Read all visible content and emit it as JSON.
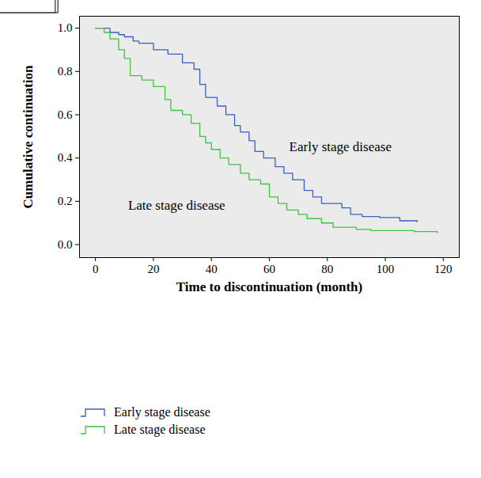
{
  "chart_data": {
    "type": "line",
    "xlabel": "Time to discontinuation (month)",
    "ylabel": "Cumulative continuation",
    "xlim": [
      -5.5,
      125.5
    ],
    "ylim": [
      -0.06,
      1.055
    ],
    "xticks": [
      0,
      20,
      40,
      60,
      80,
      100,
      120
    ],
    "yticks": [
      {
        "value": 0,
        "label": "0.0"
      },
      0.2,
      0.4,
      0.6,
      0.8,
      {
        "value": 1,
        "label": "1.0"
      }
    ],
    "grid": false,
    "legend": "bottom",
    "line_style": "step",
    "annotations": [
      {
        "text": "Early stage disease",
        "x": 84.5,
        "y": 0.45
      },
      {
        "text": "Late stage disease",
        "x": 28,
        "y": 0.18
      }
    ],
    "series": [
      {
        "name": "Early stage disease",
        "color": "#3b5fc0",
        "x": [
          0,
          5,
          8,
          10,
          13,
          15,
          20,
          25,
          30,
          34,
          36,
          38,
          42,
          45,
          48,
          50,
          53,
          55,
          58,
          62,
          65,
          68,
          72,
          75,
          78,
          85,
          88,
          92,
          98,
          105,
          111
        ],
        "values": [
          1.0,
          0.98,
          0.97,
          0.96,
          0.94,
          0.93,
          0.9,
          0.88,
          0.84,
          0.81,
          0.74,
          0.68,
          0.64,
          0.6,
          0.55,
          0.52,
          0.48,
          0.43,
          0.4,
          0.36,
          0.33,
          0.3,
          0.25,
          0.22,
          0.19,
          0.17,
          0.14,
          0.13,
          0.125,
          0.11,
          0.105
        ]
      },
      {
        "name": "Late stage disease",
        "color": "#3ec43e",
        "x": [
          0,
          3,
          5,
          8,
          10,
          12,
          16,
          20,
          24,
          26,
          30,
          33,
          36,
          38,
          40,
          43,
          46,
          50,
          53,
          57,
          60,
          63,
          66,
          70,
          73,
          78,
          82,
          90,
          95,
          110,
          118
        ],
        "values": [
          1.0,
          0.98,
          0.95,
          0.9,
          0.86,
          0.78,
          0.76,
          0.73,
          0.67,
          0.62,
          0.6,
          0.56,
          0.5,
          0.47,
          0.44,
          0.4,
          0.37,
          0.33,
          0.3,
          0.28,
          0.22,
          0.19,
          0.16,
          0.14,
          0.12,
          0.1,
          0.08,
          0.07,
          0.065,
          0.06,
          0.055
        ]
      }
    ]
  }
}
